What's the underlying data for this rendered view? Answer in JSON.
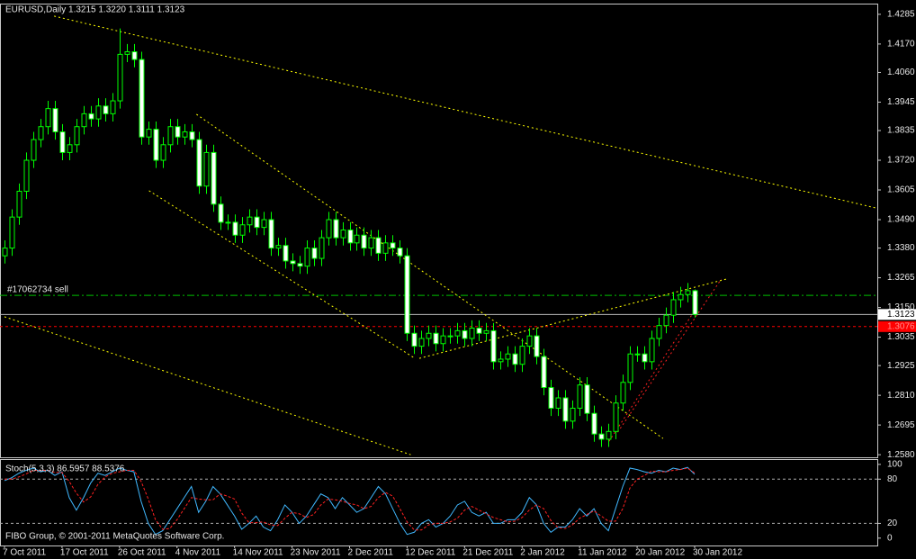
{
  "chart_data": [
    {
      "type": "candlestick",
      "title": "EURUSD,Daily  1.3215 1.3220 1.3111 1.3123",
      "categories": [
        "7 Oct 2011",
        null,
        null,
        null,
        null,
        null,
        null,
        null,
        "17 Oct 2011",
        null,
        null,
        null,
        null,
        null,
        null,
        null,
        "26 Oct 2011",
        null,
        null,
        null,
        null,
        null,
        null,
        null,
        "4 Nov 2011",
        null,
        null,
        null,
        null,
        null,
        null,
        null,
        "14 Nov 2011",
        null,
        null,
        null,
        null,
        null,
        null,
        null,
        "23 Nov 2011",
        null,
        null,
        null,
        null,
        null,
        null,
        null,
        "2 Dec 2011",
        null,
        null,
        null,
        null,
        null,
        null,
        null,
        "12 Dec 2011",
        null,
        null,
        null,
        null,
        null,
        null,
        null,
        "21 Dec 2011",
        null,
        null,
        null,
        null,
        null,
        null,
        null,
        "2 Jan 2012",
        null,
        null,
        null,
        null,
        null,
        null,
        null,
        "11 Jan 2012",
        null,
        null,
        null,
        null,
        null,
        null,
        null,
        "20 Jan 2012",
        null,
        null,
        null,
        null,
        null,
        null,
        null,
        "30 Jan 2012"
      ],
      "open": [
        1.335,
        1.338,
        1.35,
        1.36,
        1.372,
        1.38,
        1.385,
        1.392,
        1.383,
        1.375,
        1.378,
        1.385,
        1.39,
        1.388,
        1.393,
        1.39,
        1.395,
        1.413,
        1.414,
        1.411,
        1.381,
        1.384,
        1.372,
        1.378,
        1.385,
        1.381,
        1.383,
        1.38,
        1.362,
        1.375,
        1.355,
        1.348,
        1.348,
        1.343,
        1.347,
        1.35,
        1.346,
        1.349,
        1.338,
        1.339,
        1.333,
        1.332,
        1.331,
        1.338,
        1.334,
        1.342,
        1.349,
        1.342,
        1.345,
        1.34,
        1.343,
        1.338,
        1.342,
        1.336,
        1.34,
        1.338,
        1.335,
        1.305,
        1.3,
        1.303,
        1.305,
        1.301,
        1.304,
        1.304,
        1.306,
        1.303,
        1.307,
        1.305,
        1.306,
        1.294,
        1.295,
        1.297,
        1.293,
        1.3,
        1.304,
        1.296,
        1.284,
        1.276,
        1.28,
        1.271,
        1.276,
        1.285,
        1.274,
        1.266,
        1.264,
        1.267,
        1.278,
        1.286,
        1.297,
        1.297,
        1.294,
        1.303,
        1.308,
        1.312,
        1.318,
        1.32,
        1.3215
      ],
      "high": [
        1.341,
        1.353,
        1.363,
        1.375,
        1.383,
        1.388,
        1.395,
        1.395,
        1.386,
        1.381,
        1.388,
        1.393,
        1.393,
        1.396,
        1.396,
        1.398,
        1.423,
        1.417,
        1.417,
        1.414,
        1.387,
        1.387,
        1.381,
        1.388,
        1.388,
        1.386,
        1.386,
        1.383,
        1.378,
        1.378,
        1.358,
        1.351,
        1.351,
        1.35,
        1.353,
        1.353,
        1.352,
        1.352,
        1.342,
        1.342,
        1.336,
        1.335,
        1.341,
        1.341,
        1.345,
        1.352,
        1.352,
        1.348,
        1.348,
        1.346,
        1.346,
        1.345,
        1.345,
        1.343,
        1.343,
        1.341,
        1.338,
        1.308,
        1.306,
        1.308,
        1.308,
        1.307,
        1.307,
        1.309,
        1.309,
        1.31,
        1.31,
        1.309,
        1.309,
        1.298,
        1.3,
        1.3,
        1.303,
        1.307,
        1.307,
        1.299,
        1.287,
        1.283,
        1.283,
        1.279,
        1.288,
        1.288,
        1.277,
        1.269,
        1.27,
        1.281,
        1.289,
        1.3,
        1.3,
        1.3,
        1.306,
        1.311,
        1.315,
        1.321,
        1.323,
        1.3245,
        1.322
      ],
      "low": [
        1.332,
        1.335,
        1.347,
        1.357,
        1.369,
        1.377,
        1.382,
        1.38,
        1.372,
        1.372,
        1.375,
        1.382,
        1.385,
        1.385,
        1.387,
        1.387,
        1.392,
        1.41,
        1.408,
        1.378,
        1.378,
        1.369,
        1.369,
        1.375,
        1.378,
        1.378,
        1.377,
        1.359,
        1.359,
        1.352,
        1.345,
        1.345,
        1.34,
        1.34,
        1.344,
        1.343,
        1.343,
        1.335,
        1.335,
        1.33,
        1.329,
        1.328,
        1.328,
        1.331,
        1.331,
        1.339,
        1.339,
        1.339,
        1.337,
        1.337,
        1.335,
        1.335,
        1.333,
        1.333,
        1.335,
        1.332,
        1.302,
        1.297,
        1.297,
        1.3,
        1.298,
        1.298,
        1.301,
        1.301,
        1.3,
        1.3,
        1.302,
        1.302,
        1.291,
        1.291,
        1.292,
        1.29,
        1.29,
        1.297,
        1.293,
        1.281,
        1.273,
        1.273,
        1.268,
        1.268,
        1.273,
        1.271,
        1.263,
        1.261,
        1.261,
        1.264,
        1.275,
        1.283,
        1.294,
        1.291,
        1.291,
        1.3,
        1.305,
        1.309,
        1.315,
        1.317,
        1.3111
      ],
      "close": [
        1.338,
        1.35,
        1.36,
        1.372,
        1.38,
        1.385,
        1.392,
        1.383,
        1.375,
        1.378,
        1.385,
        1.39,
        1.388,
        1.393,
        1.39,
        1.395,
        1.413,
        1.414,
        1.411,
        1.381,
        1.384,
        1.372,
        1.378,
        1.385,
        1.381,
        1.383,
        1.38,
        1.362,
        1.375,
        1.355,
        1.348,
        1.348,
        1.343,
        1.347,
        1.35,
        1.346,
        1.349,
        1.338,
        1.339,
        1.333,
        1.332,
        1.331,
        1.338,
        1.334,
        1.342,
        1.349,
        1.342,
        1.345,
        1.34,
        1.343,
        1.338,
        1.342,
        1.336,
        1.34,
        1.338,
        1.335,
        1.305,
        1.3,
        1.303,
        1.305,
        1.301,
        1.304,
        1.304,
        1.306,
        1.303,
        1.307,
        1.305,
        1.306,
        1.294,
        1.295,
        1.297,
        1.293,
        1.3,
        1.304,
        1.296,
        1.284,
        1.276,
        1.28,
        1.271,
        1.276,
        1.285,
        1.274,
        1.266,
        1.264,
        1.267,
        1.278,
        1.286,
        1.297,
        1.297,
        1.294,
        1.303,
        1.308,
        1.312,
        1.318,
        1.32,
        1.3215,
        1.3123
      ],
      "bull_color": "#000000",
      "bear_color": "#ffffff",
      "wick_color": "#00ff00",
      "ylim": [
        1.257,
        1.4323
      ],
      "yticks": [
        1.4285,
        {
          "value": 1.417,
          "label": "1.4170"
        },
        {
          "value": 1.406,
          "label": "1.4060"
        },
        1.3945,
        1.3835,
        {
          "value": 1.372,
          "label": "1.3720"
        },
        1.3605,
        {
          "value": 1.349,
          "label": "1.3490"
        },
        {
          "value": 1.338,
          "label": "1.3380"
        },
        1.3265,
        {
          "value": 1.315,
          "label": "1.3150"
        },
        1.3035,
        1.2925,
        {
          "value": 1.281,
          "label": "1.2810"
        },
        1.2695,
        {
          "value": 1.258,
          "label": "1.2580"
        }
      ],
      "trendlines": [
        {
          "x1": 6.9,
          "y1": 1.4278,
          "x2": 127.1,
          "y2": 1.3497,
          "color": "#ffff00"
        },
        {
          "x1": 26.7,
          "y1": 1.3898,
          "x2": 91.6,
          "y2": 1.2643,
          "color": "#ffff00"
        },
        {
          "x1": 20.1,
          "y1": 1.3602,
          "x2": 57.1,
          "y2": 1.2953,
          "color": "#ffff00"
        },
        {
          "x1": 0,
          "y1": 1.3114,
          "x2": 56.5,
          "y2": 1.258,
          "color": "#ffff00"
        },
        {
          "x1": 57.7,
          "y1": 1.2953,
          "x2": 100.4,
          "y2": 1.326,
          "color": "#ffff00"
        },
        {
          "x1": 84.1,
          "y1": 1.2632,
          "x2": 96.0,
          "y2": 1.3138,
          "color": "#ff2020"
        },
        {
          "x1": 85.3,
          "y1": 1.2667,
          "x2": 99.7,
          "y2": 1.326,
          "color": "#ff2020"
        }
      ],
      "order_line": {
        "label": "#17062734 sell",
        "price": 1.3197,
        "color": "#00c000"
      },
      "bid": 1.3123,
      "stop_level": {
        "value": 1.3076,
        "label": "1.3076",
        "color": "#ff0000"
      }
    },
    {
      "type": "line",
      "title": "Stoch(5,3,3) 86.5957 88.5376",
      "series": [
        {
          "color": "#40b8ff",
          "dashed": false,
          "values": [
            78,
            82,
            88,
            92,
            95,
            90,
            92,
            85,
            90,
            55,
            38,
            55,
            75,
            88,
            85,
            90,
            95,
            92,
            90,
            50,
            20,
            5,
            10,
            25,
            40,
            55,
            70,
            35,
            50,
            70,
            60,
            45,
            30,
            12,
            20,
            30,
            15,
            10,
            25,
            45,
            35,
            20,
            30,
            45,
            60,
            55,
            40,
            55,
            45,
            35,
            40,
            55,
            70,
            60,
            40,
            20,
            5,
            8,
            20,
            25,
            15,
            20,
            30,
            45,
            50,
            35,
            30,
            35,
            20,
            20,
            25,
            25,
            35,
            55,
            45,
            20,
            8,
            15,
            15,
            25,
            40,
            30,
            40,
            20,
            10,
            40,
            70,
            95,
            93,
            90,
            88,
            92,
            90,
            95,
            93,
            96,
            86.5957
          ]
        },
        {
          "color": "#ff2020",
          "dashed": true,
          "values": [
            80,
            80,
            83,
            87,
            92,
            92,
            92,
            89,
            89,
            77,
            61,
            49,
            56,
            73,
            83,
            88,
            90,
            92,
            92,
            77,
            53,
            25,
            12,
            13,
            25,
            40,
            55,
            53,
            52,
            52,
            60,
            57,
            53,
            34,
            21,
            21,
            22,
            18,
            17,
            27,
            35,
            33,
            28,
            32,
            45,
            53,
            52,
            50,
            47,
            45,
            40,
            43,
            55,
            62,
            57,
            40,
            22,
            11,
            11,
            18,
            20,
            20,
            22,
            27,
            38,
            43,
            38,
            33,
            28,
            25,
            22,
            23,
            28,
            38,
            45,
            40,
            24,
            14,
            13,
            18,
            27,
            32,
            37,
            30,
            23,
            23,
            40,
            68,
            80,
            85,
            91,
            90,
            90,
            92,
            93,
            95,
            88.5376
          ]
        }
      ],
      "ylim": [
        -10,
        106
      ],
      "yticks": [
        100,
        80,
        20,
        0
      ],
      "levels": [
        80,
        20
      ]
    }
  ],
  "footer": "FIBO Group, © 2001-2011 MetaQuotes Software Corp."
}
